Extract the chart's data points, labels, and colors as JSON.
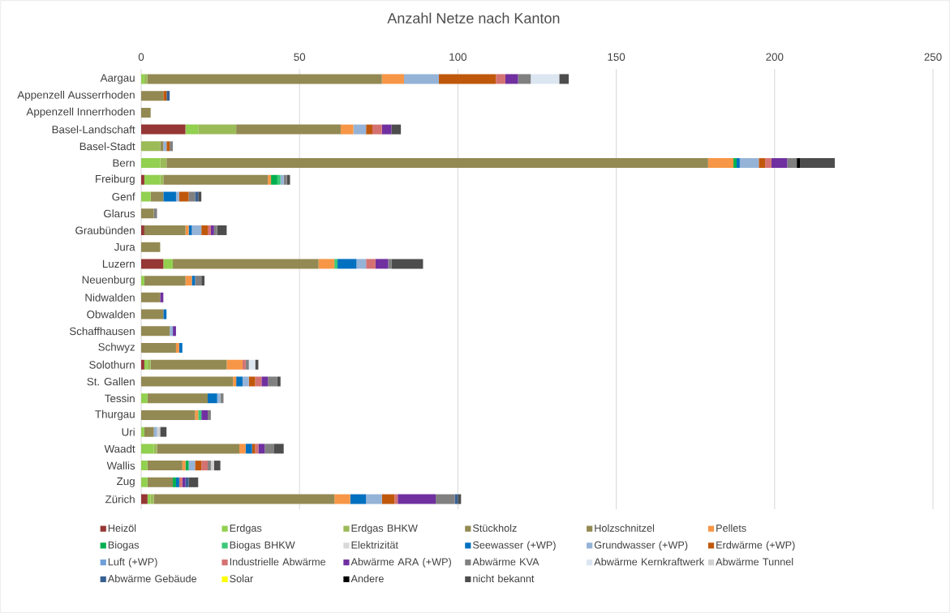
{
  "chart_data": {
    "type": "bar",
    "orientation": "horizontal",
    "stacked": true,
    "title": "Anzahl Netze nach Kanton",
    "categories": [
      "Aargau",
      "Appenzell Ausserrhoden",
      "Appenzell Innerrhoden",
      "Basel-Landschaft",
      "Basel-Stadt",
      "Bern",
      "Freiburg",
      "Genf",
      "Glarus",
      "Graubünden",
      "Jura",
      "Luzern",
      "Neuenburg",
      "Nidwalden",
      "Obwalden",
      "Schaffhausen",
      "Schwyz",
      "Solothurn",
      "St. Gallen",
      "Tessin",
      "Thurgau",
      "Uri",
      "Waadt",
      "Wallis",
      "Zug",
      "Zürich"
    ],
    "xlim": [
      0,
      250
    ],
    "xticks": [
      0,
      50,
      100,
      150,
      200,
      250
    ],
    "grid": "x",
    "legend": "bottom",
    "series": [
      {
        "name": "Heizöl",
        "color": "#953735",
        "values": [
          null,
          null,
          null,
          14,
          null,
          null,
          1,
          null,
          null,
          1,
          null,
          7,
          null,
          null,
          null,
          null,
          null,
          1,
          null,
          null,
          null,
          null,
          null,
          null,
          null,
          2
        ]
      },
      {
        "name": "Erdgas",
        "color": "#92d050",
        "values": [
          1,
          null,
          null,
          4,
          null,
          6,
          5,
          3,
          null,
          null,
          null,
          3,
          1,
          null,
          null,
          null,
          null,
          1,
          null,
          2,
          null,
          1,
          4,
          2,
          2,
          1
        ]
      },
      {
        "name": "Erdgas BHKW",
        "color": "#9bbb59",
        "values": [
          1,
          null,
          null,
          12,
          6,
          2,
          1,
          null,
          null,
          null,
          null,
          null,
          null,
          null,
          null,
          null,
          null,
          1,
          null,
          null,
          null,
          null,
          1,
          null,
          null,
          1
        ]
      },
      {
        "name": "Stückholz",
        "color": "#948a54",
        "values": [
          null,
          null,
          null,
          null,
          null,
          null,
          null,
          null,
          null,
          null,
          null,
          null,
          null,
          null,
          null,
          null,
          null,
          null,
          null,
          null,
          null,
          null,
          null,
          null,
          null,
          null
        ]
      },
      {
        "name": "Holzschnitzel",
        "color": "#938953",
        "values": [
          74,
          7,
          3,
          33,
          1,
          171,
          33,
          4,
          4,
          13,
          6,
          46,
          13,
          6,
          7,
          9,
          11,
          24,
          29,
          19,
          17,
          3,
          26,
          11,
          8,
          57
        ]
      },
      {
        "name": "Pellets",
        "color": "#f79646",
        "values": [
          7,
          null,
          null,
          4,
          null,
          8,
          1,
          null,
          null,
          1,
          null,
          5,
          2,
          null,
          null,
          null,
          1,
          5,
          1,
          null,
          1,
          null,
          2,
          1,
          null,
          5
        ]
      },
      {
        "name": "Biogas",
        "color": "#00b050",
        "values": [
          null,
          null,
          null,
          null,
          null,
          1,
          2,
          null,
          null,
          null,
          null,
          null,
          null,
          null,
          null,
          null,
          null,
          null,
          null,
          null,
          null,
          null,
          null,
          1,
          1,
          null
        ]
      },
      {
        "name": "Biogas BHKW",
        "color": "#3cc878",
        "values": [
          null,
          null,
          null,
          null,
          null,
          null,
          1,
          null,
          null,
          null,
          null,
          1,
          null,
          null,
          null,
          null,
          null,
          null,
          null,
          null,
          1,
          null,
          null,
          null,
          null,
          null
        ]
      },
      {
        "name": "Elektrizität",
        "color": "#d9d9d9",
        "values": [
          null,
          null,
          null,
          null,
          null,
          null,
          null,
          null,
          null,
          null,
          null,
          null,
          null,
          null,
          null,
          null,
          null,
          null,
          null,
          null,
          null,
          null,
          null,
          null,
          null,
          null
        ]
      },
      {
        "name": "Seewasser (+WP)",
        "color": "#0070c0",
        "values": [
          null,
          null,
          null,
          null,
          null,
          1,
          null,
          4,
          null,
          1,
          null,
          6,
          1,
          null,
          1,
          null,
          1,
          null,
          2,
          3,
          null,
          null,
          2,
          null,
          1,
          5
        ]
      },
      {
        "name": "Grundwasser (+WP)",
        "color": "#95b3d7",
        "values": [
          11,
          null,
          null,
          4,
          1,
          6,
          1,
          1,
          null,
          3,
          null,
          3,
          null,
          null,
          null,
          1,
          null,
          null,
          2,
          1,
          null,
          1,
          null,
          2,
          null,
          5
        ]
      },
      {
        "name": "Erdwärme (+WP)",
        "color": "#c0580c",
        "values": [
          18,
          1,
          null,
          2,
          1,
          2,
          null,
          3,
          null,
          2,
          null,
          null,
          null,
          null,
          null,
          null,
          null,
          null,
          2,
          null,
          null,
          null,
          1,
          2,
          null,
          4
        ]
      },
      {
        "name": "Luft (+WP)",
        "color": "#6f9fd8",
        "values": [
          null,
          null,
          null,
          null,
          null,
          null,
          null,
          null,
          null,
          null,
          null,
          null,
          null,
          null,
          null,
          null,
          null,
          null,
          null,
          null,
          null,
          null,
          null,
          null,
          null,
          null
        ]
      },
      {
        "name": "Industrielle Abwärme",
        "color": "#d47272",
        "values": [
          3,
          null,
          null,
          3,
          null,
          2,
          null,
          null,
          null,
          1,
          null,
          3,
          null,
          null,
          null,
          null,
          null,
          1,
          2,
          null,
          null,
          null,
          1,
          2,
          1,
          1
        ]
      },
      {
        "name": "Abwärme ARA (+WP)",
        "color": "#7030a0",
        "values": [
          4,
          null,
          null,
          3,
          null,
          5,
          null,
          null,
          null,
          1,
          null,
          4,
          null,
          1,
          null,
          1,
          null,
          null,
          2,
          null,
          2,
          null,
          2,
          null,
          1,
          12
        ]
      },
      {
        "name": "Abwärme KVA",
        "color": "#808080",
        "values": [
          4,
          null,
          null,
          null,
          1,
          3,
          1,
          2,
          1,
          1,
          null,
          1,
          2,
          null,
          null,
          null,
          null,
          1,
          3,
          1,
          1,
          null,
          3,
          1,
          null,
          6
        ]
      },
      {
        "name": "Abwärme Kernkraftwerk",
        "color": "#dce6f1",
        "values": [
          9,
          null,
          null,
          null,
          null,
          null,
          null,
          null,
          null,
          null,
          null,
          null,
          null,
          null,
          null,
          null,
          null,
          2,
          null,
          null,
          null,
          null,
          null,
          null,
          null,
          null
        ]
      },
      {
        "name": "Abwärme Tunnel",
        "color": "#d0d0d0",
        "values": [
          null,
          null,
          null,
          null,
          null,
          null,
          null,
          null,
          null,
          null,
          null,
          null,
          null,
          null,
          null,
          null,
          null,
          null,
          null,
          null,
          null,
          1,
          null,
          1,
          null,
          null
        ]
      },
      {
        "name": "Abwärme Gebäude",
        "color": "#376092",
        "values": [
          null,
          1,
          null,
          null,
          null,
          null,
          null,
          1,
          null,
          null,
          null,
          null,
          null,
          null,
          null,
          null,
          null,
          null,
          null,
          null,
          null,
          null,
          null,
          null,
          1,
          1
        ]
      },
      {
        "name": "Solar",
        "color": "#ffff00",
        "values": [
          null,
          null,
          null,
          null,
          null,
          null,
          null,
          null,
          null,
          null,
          null,
          null,
          null,
          null,
          null,
          null,
          null,
          null,
          null,
          null,
          null,
          null,
          null,
          null,
          null,
          null
        ]
      },
      {
        "name": "Andere",
        "color": "#000000",
        "values": [
          null,
          null,
          null,
          null,
          null,
          1,
          null,
          null,
          null,
          null,
          null,
          null,
          null,
          null,
          null,
          null,
          null,
          null,
          null,
          null,
          null,
          null,
          null,
          null,
          null,
          null
        ]
      },
      {
        "name": "nicht bekannt",
        "color": "#4d4d4d",
        "values": [
          3,
          null,
          null,
          3,
          null,
          11,
          1,
          1,
          null,
          3,
          null,
          10,
          1,
          null,
          null,
          null,
          null,
          1,
          1,
          null,
          null,
          2,
          3,
          2,
          3,
          1
        ]
      }
    ]
  }
}
